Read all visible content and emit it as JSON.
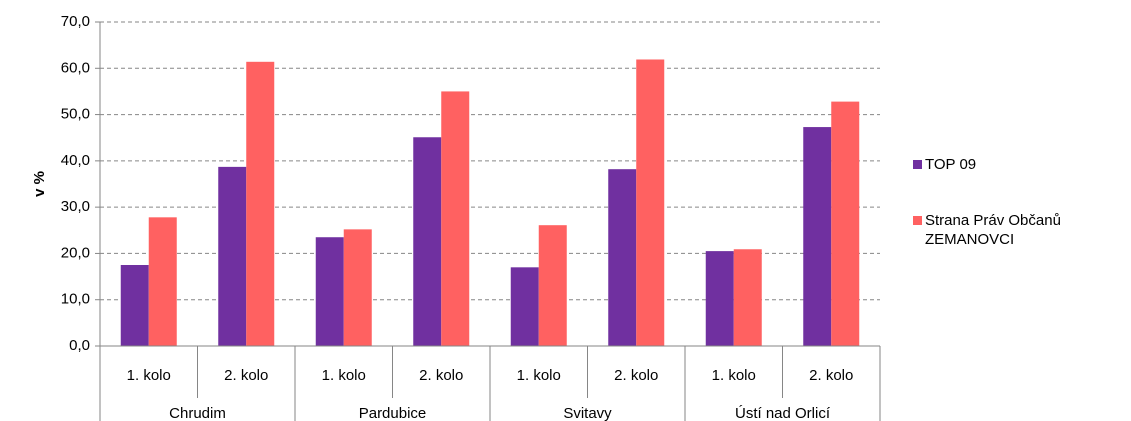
{
  "chart_data": {
    "type": "bar",
    "ylabel": "v %",
    "categories": [
      "1. kolo",
      "2. kolo",
      "1. kolo",
      "2. kolo",
      "1. kolo",
      "2. kolo",
      "1. kolo",
      "2. kolo"
    ],
    "groups": [
      "Chrudim",
      "Pardubice",
      "Svitavy",
      "Ústí nad Orlicí"
    ],
    "series": [
      {
        "name": "TOP 09",
        "color": "#7030a0",
        "values": [
          17.5,
          38.7,
          23.5,
          45.1,
          17.0,
          38.2,
          20.5,
          47.3
        ]
      },
      {
        "name": "Strana Práv Občanů ZEMANOVCI",
        "color": "#ff6161",
        "values": [
          27.8,
          61.4,
          25.2,
          55.0,
          26.1,
          61.9,
          20.9,
          52.8
        ]
      }
    ],
    "ylim": [
      0,
      70
    ],
    "yticks": [
      {
        "value": 0,
        "label": "0,0"
      },
      {
        "value": 10,
        "label": "10,0"
      },
      {
        "value": 20,
        "label": "20,0"
      },
      {
        "value": 30,
        "label": "30,0"
      },
      {
        "value": 40,
        "label": "40,0"
      },
      {
        "value": 50,
        "label": "50,0"
      },
      {
        "value": 60,
        "label": "60,0"
      },
      {
        "value": 70,
        "label": "70,0"
      }
    ],
    "grid": true
  }
}
